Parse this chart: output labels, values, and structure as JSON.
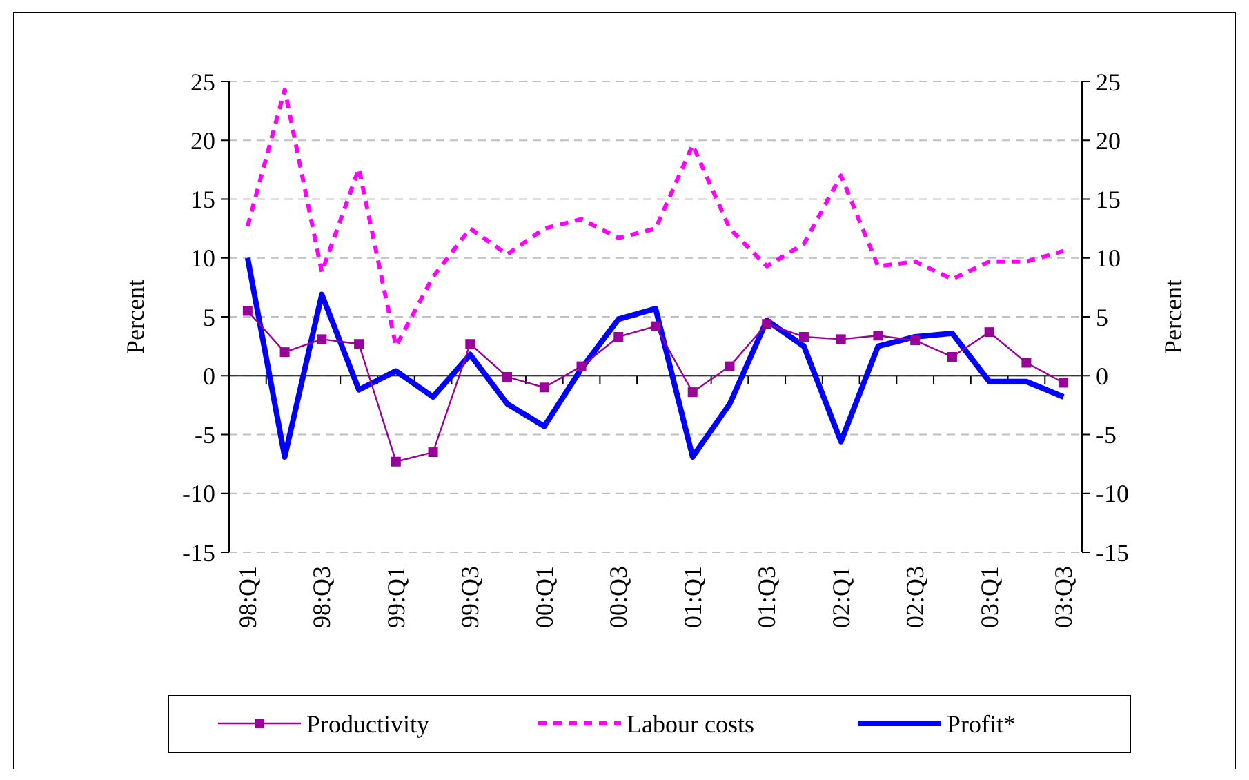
{
  "chart_data": {
    "type": "line",
    "categories": [
      "98:Q1",
      null,
      "98:Q3",
      null,
      "99:Q1",
      null,
      "99:Q3",
      null,
      "00:Q1",
      null,
      "00:Q3",
      null,
      "01:Q1",
      null,
      "01:Q3",
      null,
      "02:Q1",
      null,
      "02:Q3",
      null,
      "03:Q1",
      null,
      "03:Q3"
    ],
    "series": [
      {
        "name": "Productivity",
        "color": "#990099",
        "marker": "square",
        "line_style": "solid",
        "values": [
          5.5,
          2.0,
          3.1,
          2.7,
          -7.3,
          -6.5,
          2.7,
          -0.1,
          -1.0,
          0.8,
          3.3,
          4.2,
          -1.4,
          0.8,
          4.4,
          3.3,
          3.1,
          3.4,
          3.0,
          1.6,
          3.7,
          1.1,
          -0.6
        ]
      },
      {
        "name": "Labour costs",
        "color": "#ff00ff",
        "marker": "none",
        "line_style": "dashed",
        "values": [
          12.7,
          24.3,
          8.8,
          17.6,
          2.5,
          8.4,
          12.5,
          10.3,
          12.5,
          13.3,
          11.7,
          12.5,
          19.6,
          12.5,
          9.3,
          11.2,
          17.0,
          9.3,
          9.7,
          8.2,
          9.7,
          9.7,
          10.6
        ]
      },
      {
        "name": "Profit*",
        "color": "#0000ff",
        "marker": "none",
        "line_style": "solid",
        "values": [
          10.0,
          -6.9,
          6.9,
          -1.2,
          0.4,
          -1.8,
          1.8,
          -2.4,
          -4.3,
          0.6,
          4.8,
          5.7,
          -6.9,
          -2.4,
          4.7,
          2.5,
          -5.6,
          2.5,
          3.3,
          3.6,
          -0.5,
          -0.5,
          -1.8
        ]
      }
    ],
    "ylabel": "Percent",
    "y2label": "Percent",
    "ylim": [
      -15,
      25
    ],
    "yticks": [
      -15,
      -10,
      -5,
      0,
      5,
      10,
      15,
      20,
      25
    ],
    "y2lim": [
      -15,
      25
    ],
    "y2ticks": [
      -15,
      -10,
      -5,
      0,
      5,
      10,
      15,
      20,
      25
    ],
    "grid": "y",
    "legend": "bottom"
  }
}
